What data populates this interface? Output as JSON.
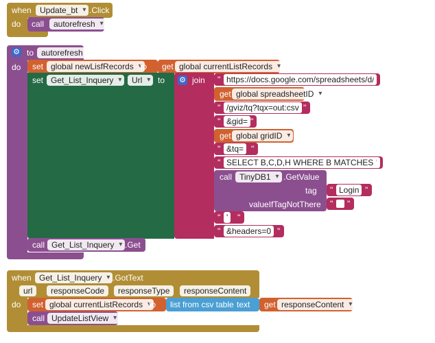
{
  "block1": {
    "when": "when",
    "component": "Update_bt",
    "event": ".Click",
    "do": "do",
    "call": "call",
    "procedure": "autorefresh"
  },
  "block2": {
    "to": "to",
    "name": "autorefresh",
    "do": "do",
    "set": "set",
    "variable": "global newLisfRecords",
    "to2": "to",
    "get": "get",
    "get_variable": "global currentListRecords",
    "set2": "set",
    "component": "Get_List_Inquery",
    "dot": ".",
    "property": "Url",
    "to3": "to",
    "join": "join",
    "join_items": {
      "s1": "https://docs.google.com/spreadsheets/d/",
      "get1": "get",
      "g1": "global spreadsheetID",
      "s2": "/gviz/tq?tqx=out:csv",
      "s3": "&gid=",
      "get2": "get",
      "g2": "global gridID",
      "s4": "&tq=",
      "s5": "SELECT B,C,D,H WHERE B MATCHES '",
      "call": "call",
      "db": "TinyDB1",
      "method": ".GetValue",
      "tag": "tag",
      "tag_value": "Login",
      "vitnt": "valueIfTagNotThere",
      "s6": "'",
      "s7": "&headers=0"
    },
    "call": "call",
    "call_component": "Get_List_Inquery",
    "call_method": ".Get"
  },
  "block3": {
    "when": "when",
    "component": "Get_List_Inquery",
    "event": ".GotText",
    "params": [
      "url",
      "responseCode",
      "responseType",
      "responseContent"
    ],
    "do": "do",
    "set": "set",
    "variable": "global currentListRecords",
    "to": "to",
    "list_from_csv": "list from csv table",
    "text": "text",
    "get": "get",
    "get_variable": "responseContent",
    "call": "call",
    "procedure": "UpdateListView"
  },
  "colors": {
    "event": "#b18e35",
    "procedure": "#8b4f8f",
    "variable": "#d1612f",
    "component_setter": "#246a45",
    "text": "#b32d5e",
    "list": "#4a9fd4"
  }
}
